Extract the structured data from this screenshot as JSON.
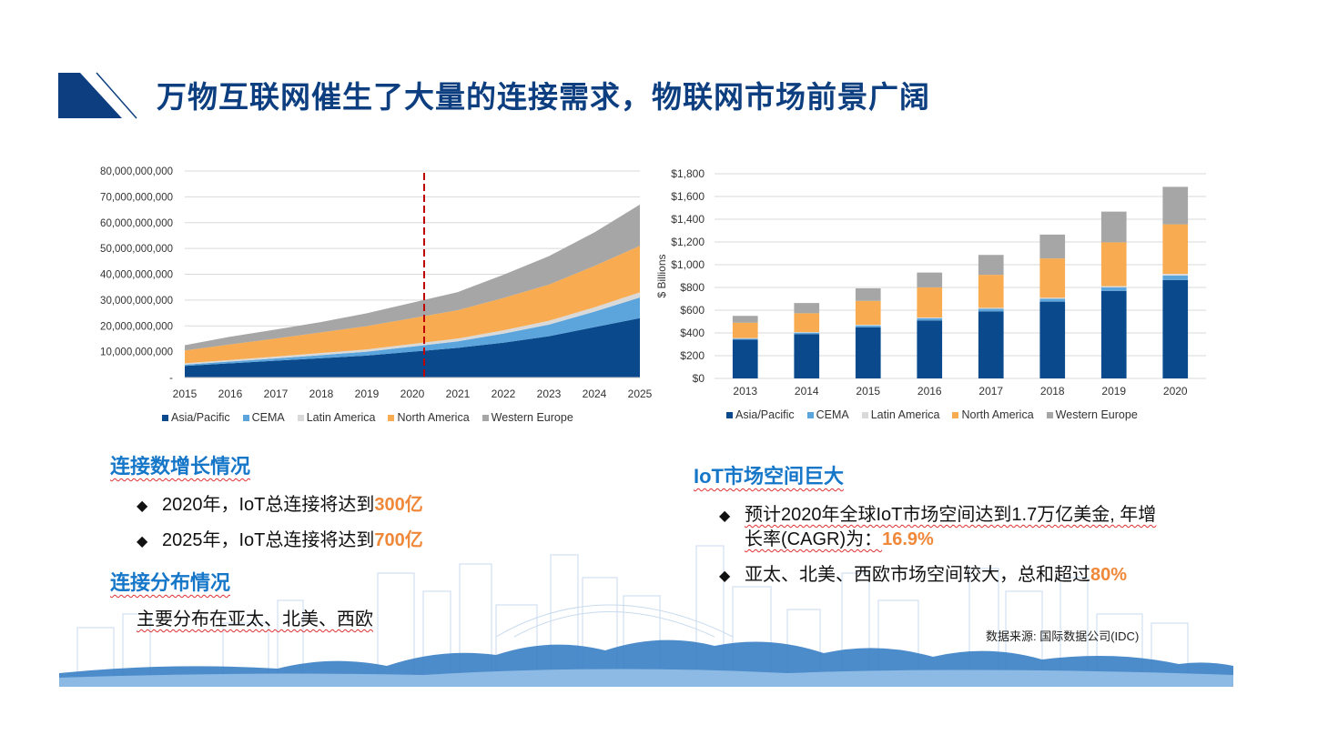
{
  "header": {
    "title": "万物互联网催生了大量的连接需求，物联网市场前景广阔"
  },
  "colors": {
    "asia_pacific": "#0a4a8c",
    "cema": "#5ca4dc",
    "latin_america": "#d9d9d9",
    "north_america": "#f8ab50",
    "western_europe": "#a6a6a6",
    "title": "#0d3f80",
    "heading": "#1677c9",
    "highlight": "#f0883a",
    "marker_line": "#c00000"
  },
  "left_legend": [
    "Asia/Pacific",
    "CEMA",
    "Latin America",
    "North America",
    "Western Europe"
  ],
  "right_legend": [
    "Asia/Pacific",
    "CEMA",
    "Latin America",
    "North America",
    "Western Europe"
  ],
  "chart_data": [
    {
      "type": "area",
      "stacked": true,
      "x": [
        "2015",
        "2016",
        "2017",
        "2018",
        "2019",
        "2020",
        "2021",
        "2022",
        "2023",
        "2024",
        "2025"
      ],
      "series": [
        {
          "name": "Asia/Pacific",
          "values": [
            4500000000,
            5500000000,
            6500000000,
            7500000000,
            8500000000,
            10000000000,
            11500000000,
            13500000000,
            16000000000,
            19500000000,
            23000000000
          ]
        },
        {
          "name": "CEMA",
          "values": [
            500000000,
            700000000,
            900000000,
            1200000000,
            1500000000,
            2000000000,
            2500000000,
            3500000000,
            4500000000,
            6000000000,
            8000000000
          ]
        },
        {
          "name": "Latin America",
          "values": [
            500000000,
            600000000,
            700000000,
            800000000,
            900000000,
            1000000000,
            1100000000,
            1300000000,
            1500000000,
            1700000000,
            2000000000
          ]
        },
        {
          "name": "North America",
          "values": [
            5000000000,
            6000000000,
            7000000000,
            8000000000,
            9000000000,
            10000000000,
            11000000000,
            12500000000,
            14000000000,
            16000000000,
            18000000000
          ]
        },
        {
          "name": "Western Europe",
          "values": [
            2000000000,
            3000000000,
            3500000000,
            4000000000,
            5000000000,
            6000000000,
            7000000000,
            9000000000,
            11000000000,
            13000000000,
            16000000000
          ]
        }
      ],
      "y_ticks": [
        "-",
        "10,000,000,000",
        "20,000,000,000",
        "30,000,000,000",
        "40,000,000,000",
        "50,000,000,000",
        "60,000,000,000",
        "70,000,000,000",
        "80,000,000,000"
      ],
      "ylim": [
        0,
        80000000000
      ],
      "marker_x": "2020",
      "grid": true,
      "legend_position": "bottom"
    },
    {
      "type": "bar",
      "stacked": true,
      "categories": [
        "2013",
        "2014",
        "2015",
        "2016",
        "2017",
        "2018",
        "2019",
        "2020"
      ],
      "series": [
        {
          "name": "Asia/Pacific",
          "values": [
            340,
            390,
            450,
            510,
            590,
            675,
            770,
            865
          ]
        },
        {
          "name": "CEMA",
          "values": [
            10,
            12,
            15,
            18,
            22,
            25,
            30,
            40
          ]
        },
        {
          "name": "Latin America",
          "values": [
            5,
            6,
            7,
            8,
            9,
            10,
            12,
            15
          ]
        },
        {
          "name": "North America",
          "values": [
            135,
            165,
            210,
            265,
            290,
            345,
            385,
            435
          ]
        },
        {
          "name": "Western Europe",
          "values": [
            60,
            90,
            110,
            130,
            175,
            210,
            270,
            330
          ]
        }
      ],
      "ylabel": "$ Billions",
      "y_ticks": [
        "$0",
        "$200",
        "$400",
        "$600",
        "$800",
        "$1,000",
        "$1,200",
        "$1,400",
        "$1,600",
        "$1,800"
      ],
      "ylim": [
        0,
        1800
      ],
      "grid": true,
      "legend_position": "bottom"
    }
  ],
  "left_section": {
    "heading1": "连接数增长情况",
    "b1_text": "2020年，IoT总连接将达到",
    "b1_hl": "300亿",
    "b2_text": "2025年，IoT总连接将达到",
    "b2_hl": "700亿",
    "heading2": "连接分布情况",
    "dist_text": "主要分布在亚太、北美、西欧"
  },
  "right_section": {
    "heading": "IoT市场空间巨大",
    "b1_line1": "预计2020年全球IoT市场空间达到1.7万亿美金, 年增",
    "b1_line2": "长率(CAGR)为：",
    "b1_hl": "16.9%",
    "b2_text": "亚太、北美、西欧市场空间较大，总和超过",
    "b2_hl": "80%"
  },
  "source": "数据来源: 国际数据公司(IDC)"
}
